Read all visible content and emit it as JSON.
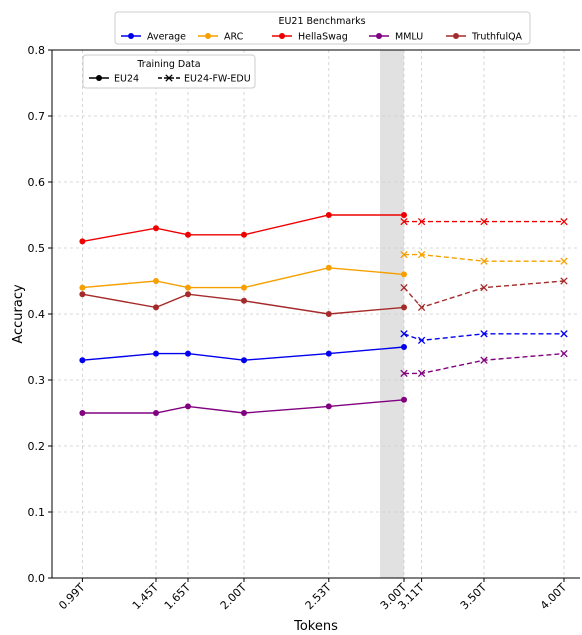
{
  "chart_data": {
    "type": "line",
    "xlabel": "Tokens",
    "ylabel": "Accuracy",
    "ylim": [
      0,
      0.8
    ],
    "xlim": [
      0.8,
      4.1
    ],
    "x_ticks": [
      0.99,
      1.45,
      1.65,
      2.0,
      2.53,
      3.0,
      3.11,
      3.5,
      4.0
    ],
    "x_tick_labels": [
      "0.99T",
      "1.45T",
      "1.65T",
      "2.00T",
      "2.53T",
      "3.00T",
      "3.11T",
      "3.50T",
      "4.00T"
    ],
    "y_ticks": [
      0.0,
      0.1,
      0.2,
      0.3,
      0.4,
      0.5,
      0.6,
      0.7,
      0.8
    ],
    "y_tick_labels": [
      "0.0",
      "0.1",
      "0.2",
      "0.3",
      "0.4",
      "0.5",
      "0.6",
      "0.7",
      "0.8"
    ],
    "grid": true,
    "shaded_region": [
      2.85,
      3.0
    ],
    "legend_benchmarks": {
      "title": "EU21 Benchmarks",
      "placement": "top-center",
      "entries": [
        "Average",
        "ARC",
        "HellaSwag",
        "MMLU",
        "TruthfulQA"
      ]
    },
    "legend_training": {
      "title": "Training Data",
      "placement": "top-left",
      "entries": [
        "EU24",
        "EU24-FW-EDU"
      ]
    },
    "series": [
      {
        "name": "Average",
        "color": "#0000ee",
        "eu24": {
          "x": [
            0.99,
            1.45,
            1.65,
            2.0,
            2.53,
            3.0
          ],
          "y": [
            0.33,
            0.34,
            0.34,
            0.33,
            0.34,
            0.35
          ]
        },
        "fwedu": {
          "x": [
            3.0,
            3.11,
            3.5,
            4.0
          ],
          "y": [
            0.37,
            0.36,
            0.37,
            0.37
          ]
        }
      },
      {
        "name": "ARC",
        "color": "#f5a000",
        "eu24": {
          "x": [
            0.99,
            1.45,
            1.65,
            2.0,
            2.53,
            3.0
          ],
          "y": [
            0.44,
            0.45,
            0.44,
            0.44,
            0.47,
            0.46
          ]
        },
        "fwedu": {
          "x": [
            3.0,
            3.11,
            3.5,
            4.0
          ],
          "y": [
            0.49,
            0.49,
            0.48,
            0.48
          ]
        }
      },
      {
        "name": "HellaSwag",
        "color": "#ee0000",
        "eu24": {
          "x": [
            0.99,
            1.45,
            1.65,
            2.0,
            2.53,
            3.0
          ],
          "y": [
            0.51,
            0.53,
            0.52,
            0.52,
            0.55,
            0.55
          ]
        },
        "fwedu": {
          "x": [
            3.0,
            3.11,
            3.5,
            4.0
          ],
          "y": [
            0.54,
            0.54,
            0.54,
            0.54
          ]
        }
      },
      {
        "name": "MMLU",
        "color": "#800080",
        "eu24": {
          "x": [
            0.99,
            1.45,
            1.65,
            2.0,
            2.53,
            3.0
          ],
          "y": [
            0.25,
            0.25,
            0.26,
            0.25,
            0.26,
            0.27
          ]
        },
        "fwedu": {
          "x": [
            3.0,
            3.11,
            3.5,
            4.0
          ],
          "y": [
            0.31,
            0.31,
            0.33,
            0.34
          ]
        }
      },
      {
        "name": "TruthfulQA",
        "color": "#a52a2a",
        "eu24": {
          "x": [
            0.99,
            1.45,
            1.65,
            2.0,
            2.53,
            3.0
          ],
          "y": [
            0.43,
            0.41,
            0.43,
            0.42,
            0.4,
            0.41
          ]
        },
        "fwedu": {
          "x": [
            3.0,
            3.11,
            3.5,
            4.0
          ],
          "y": [
            0.44,
            0.41,
            0.44,
            0.45
          ]
        }
      }
    ]
  }
}
